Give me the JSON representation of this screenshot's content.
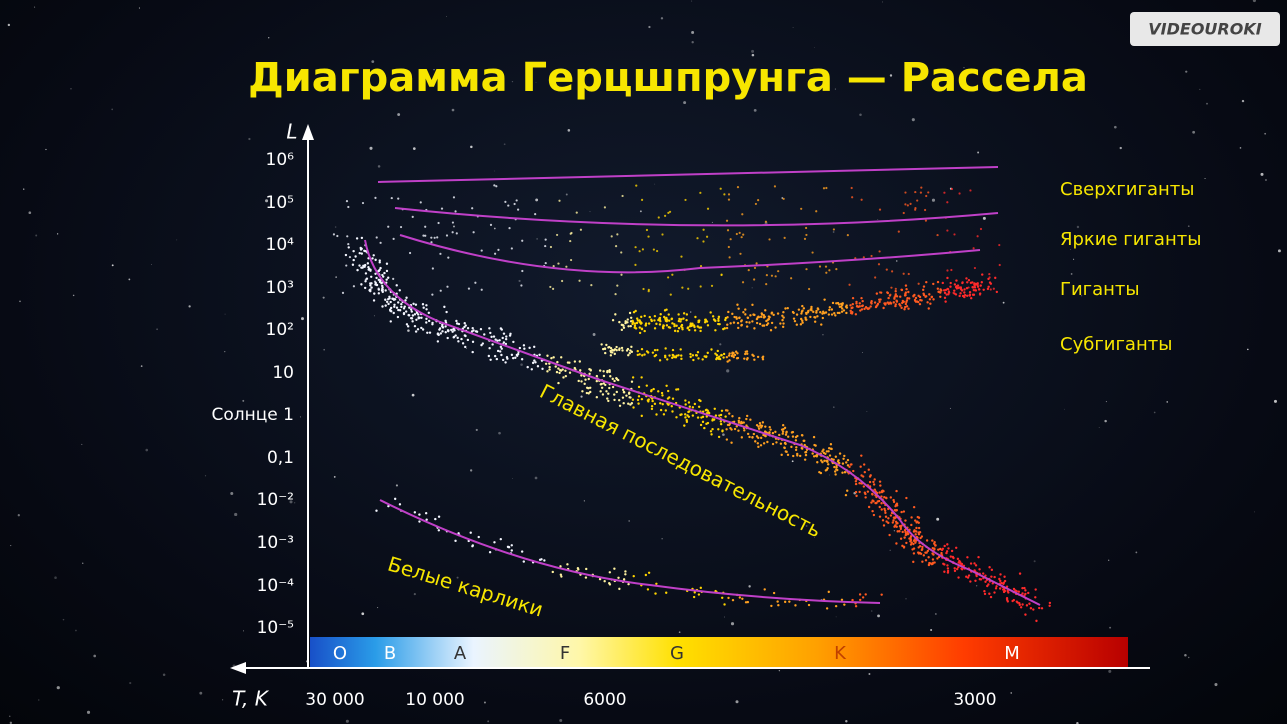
{
  "header": {
    "title": "Диаграмма Герцшпрунга — Рассела",
    "brand": "VIDEOUROKI"
  },
  "y_axis": {
    "label": "L",
    "ticks": [
      "10⁶",
      "10⁵",
      "10⁴",
      "10³",
      "10²",
      "10",
      "Солнце 1",
      "0,1",
      "10⁻²",
      "10⁻³",
      "10⁻⁴",
      "10⁻⁵"
    ]
  },
  "x_axis": {
    "label": "T, K",
    "ticks": [
      "30 000",
      "10 000",
      "6000",
      "3000"
    ]
  },
  "spectral_classes": [
    "O",
    "B",
    "A",
    "F",
    "G",
    "K",
    "M"
  ],
  "regions": [
    "Сверхгиганты",
    "Яркие гиганты",
    "Гиганты",
    "Субгиганты",
    "Главная последовательность",
    "Белые карлики"
  ]
}
